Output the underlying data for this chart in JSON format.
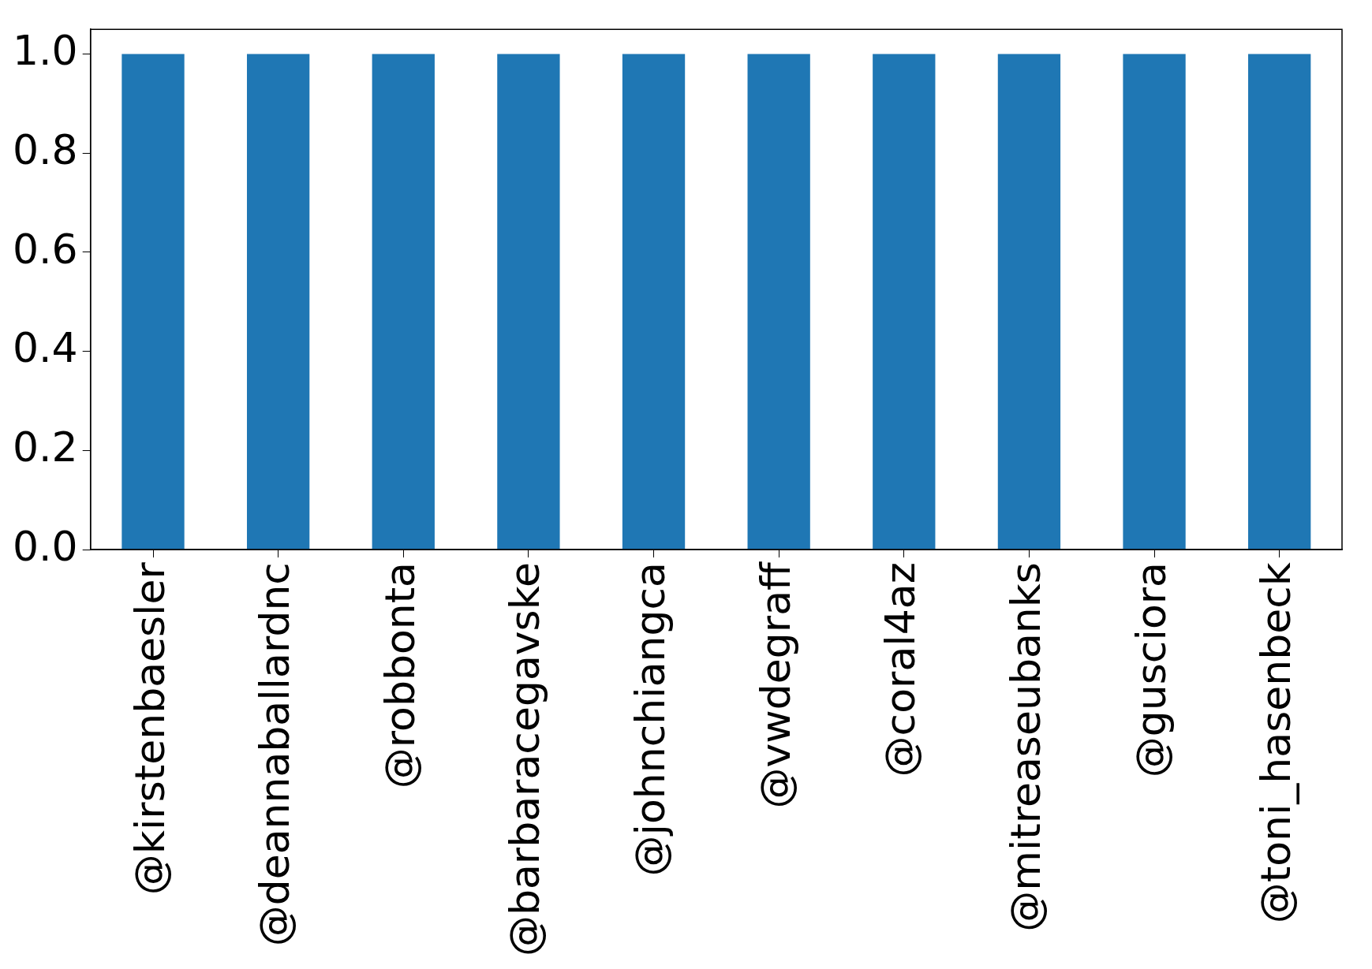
{
  "chart_data": {
    "type": "bar",
    "categories": [
      "@kirstenbaesler",
      "@deannaballardnc",
      "@robbonta",
      "@barbaracegavske",
      "@johnchiangca",
      "@vwdegraff",
      "@coral4az",
      "@mitreaseubanks",
      "@gusciora",
      "@toni_hasenbeck"
    ],
    "values": [
      1,
      1,
      1,
      1,
      1,
      1,
      1,
      1,
      1,
      1
    ],
    "color": "#1f77b4",
    "ylim": [
      0,
      1.05
    ],
    "yticks": [
      {
        "value": 0,
        "label": "0.0"
      },
      {
        "value": 0.2,
        "label": "0.2"
      },
      {
        "value": 0.4,
        "label": "0.4"
      },
      {
        "value": 0.6,
        "label": "0.6"
      },
      {
        "value": 0.8,
        "label": "0.8"
      },
      {
        "value": 1,
        "label": "1.0"
      }
    ],
    "grid": false,
    "legend": false
  }
}
